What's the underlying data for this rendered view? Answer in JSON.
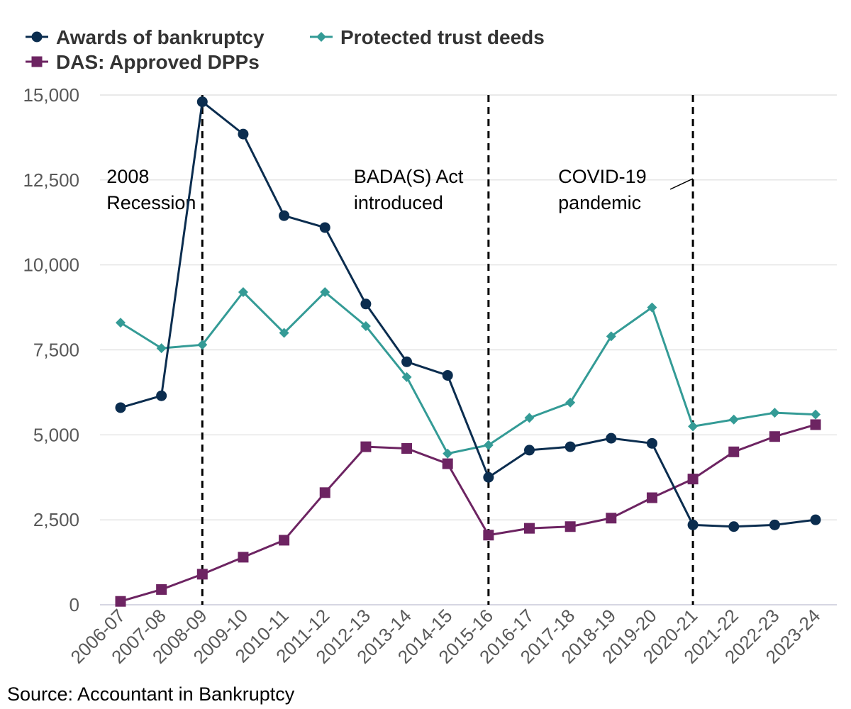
{
  "chart_data": {
    "type": "line",
    "title": "",
    "xlabel": "",
    "ylabel": "",
    "ylim": [
      0,
      15000
    ],
    "yticks": [
      0,
      2500,
      5000,
      7500,
      10000,
      12500,
      15000
    ],
    "ytick_labels": [
      "0",
      "2,500",
      "5,000",
      "7,500",
      "10,000",
      "12,500",
      "15,000"
    ],
    "categories": [
      "2006-07",
      "2007-08",
      "2008-09",
      "2009-10",
      "2010-11",
      "2011-12",
      "2012-13",
      "2013-14",
      "2014-15",
      "2015-16",
      "2016-17",
      "2017-18",
      "2018-19",
      "2019-20",
      "2020-21",
      "2021-22",
      "2022-23",
      "2023-24"
    ],
    "grid": true,
    "legend_position": "top-left",
    "series": [
      {
        "name": "Awards of bankruptcy",
        "color": "#0b2d4f",
        "marker": "circle",
        "values": [
          5800,
          6150,
          14800,
          13850,
          11450,
          11100,
          8850,
          7150,
          6750,
          3750,
          4550,
          4650,
          4900,
          4750,
          2350,
          2300,
          2350,
          2500
        ]
      },
      {
        "name": "Protected trust deeds",
        "color": "#349b96",
        "marker": "diamond",
        "values": [
          8300,
          7550,
          7650,
          9200,
          8000,
          9200,
          8200,
          6700,
          4450,
          4700,
          5500,
          5950,
          7900,
          8750,
          5250,
          5450,
          5650,
          5600
        ]
      },
      {
        "name": "DAS: Approved DPPs",
        "color": "#6d2462",
        "marker": "square",
        "values": [
          100,
          450,
          900,
          1400,
          1900,
          3300,
          4650,
          4600,
          4150,
          2050,
          2250,
          2300,
          2550,
          3150,
          3700,
          4500,
          4950,
          5300
        ]
      }
    ],
    "annotations": [
      {
        "index": 2,
        "lines": [
          "2008",
          "Recession"
        ]
      },
      {
        "index": 9,
        "lines": [
          "BADA(S) Act",
          "introduced"
        ]
      },
      {
        "index": 14,
        "lines": [
          "COVID-19",
          "pandemic"
        ]
      }
    ],
    "source": "Source: Accountant in Bankruptcy"
  }
}
